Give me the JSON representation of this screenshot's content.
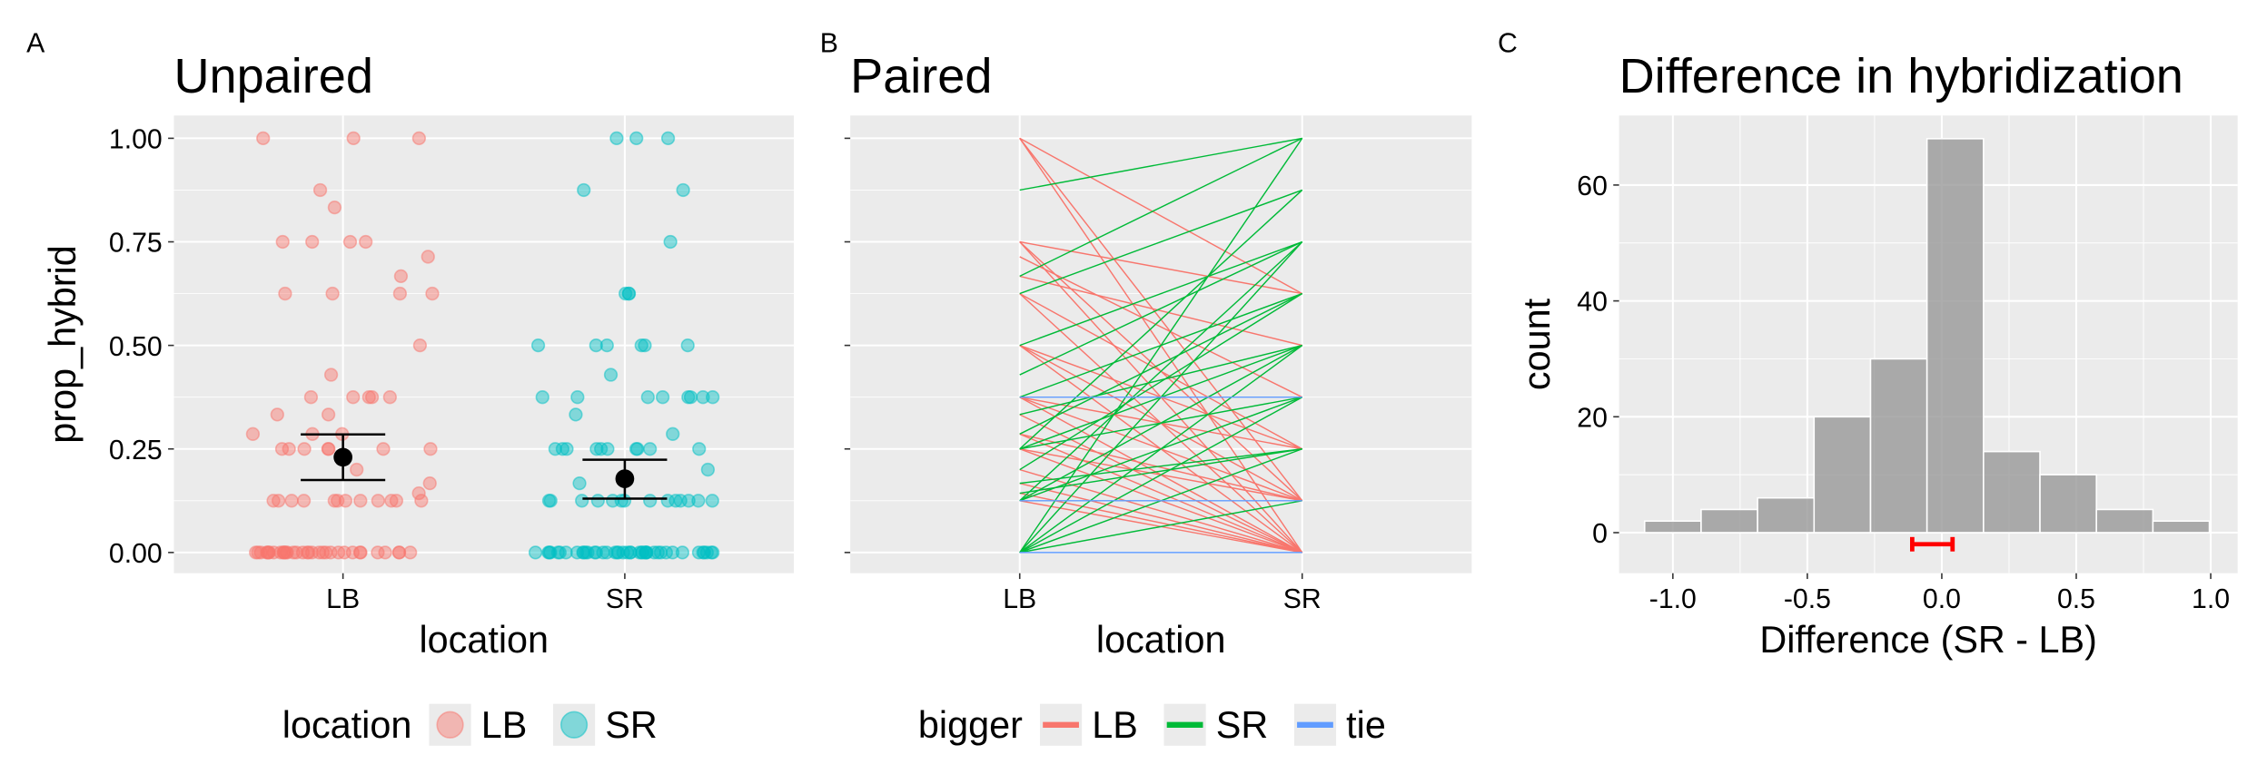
{
  "chart_data": [
    {
      "type": "strip",
      "panel_label": "A",
      "title": "Unpaired",
      "xlabel": "location",
      "ylabel": "prop_hybrid",
      "categories": [
        "LB",
        "SR"
      ],
      "series": [
        {
          "name": "LB",
          "color": "#F8766D",
          "values": [
            1,
            1,
            1,
            0.875,
            0.833,
            0.75,
            0.75,
            0.75,
            0.75,
            0.714,
            0.667,
            0.625,
            0.625,
            0.625,
            0.625,
            0.5,
            0.429,
            0.375,
            0.375,
            0.375,
            0.375,
            0.375,
            0.333,
            0.333,
            0.286,
            0.286,
            0.286,
            0.25,
            0.25,
            0.25,
            0.25,
            0.25,
            0.25,
            0.25,
            0.2,
            0.167,
            0.143,
            0.125,
            0.125,
            0.125,
            0.125,
            0.125,
            0.125,
            0.125,
            0.125,
            0.125,
            0.125,
            0.125,
            0.125,
            0,
            0,
            0,
            0,
            0,
            0,
            0,
            0,
            0,
            0,
            0,
            0,
            0,
            0,
            0,
            0,
            0,
            0,
            0,
            0,
            0,
            0,
            0,
            0,
            0,
            0,
            0,
            0,
            0,
            0,
            0,
            0,
            0,
            0
          ]
        },
        {
          "name": "SR",
          "color": "#00BFC4",
          "values": [
            1,
            1,
            1,
            0.875,
            0.875,
            0.75,
            0.625,
            0.625,
            0.625,
            0.5,
            0.5,
            0.5,
            0.5,
            0.5,
            0.5,
            0.429,
            0.375,
            0.375,
            0.375,
            0.375,
            0.375,
            0.375,
            0.375,
            0.375,
            0.333,
            0.286,
            0.25,
            0.25,
            0.25,
            0.25,
            0.25,
            0.25,
            0.25,
            0.25,
            0.25,
            0.25,
            0.2,
            0.167,
            0.125,
            0.125,
            0.125,
            0.125,
            0.125,
            0.125,
            0.125,
            0.125,
            0.125,
            0.125,
            0.125,
            0.125,
            0.125,
            0.125,
            0,
            0,
            0,
            0,
            0,
            0,
            0,
            0,
            0,
            0,
            0,
            0,
            0,
            0,
            0,
            0,
            0,
            0,
            0,
            0,
            0,
            0,
            0,
            0,
            0,
            0,
            0,
            0,
            0,
            0,
            0,
            0,
            0,
            0,
            0,
            0,
            0,
            0,
            0,
            0,
            0,
            0
          ]
        }
      ],
      "summary": [
        {
          "mean": 0.23,
          "low": 0.175,
          "high": 0.285
        },
        {
          "mean": 0.178,
          "low": 0.13,
          "high": 0.224
        }
      ],
      "ylim": [
        -0.05,
        1.055
      ],
      "yticks": [
        {
          "value": 0,
          "label": "0.00"
        },
        {
          "value": 0.25,
          "label": "0.25"
        },
        {
          "value": 0.5,
          "label": "0.50"
        },
        {
          "value": 0.75,
          "label": "0.75"
        },
        {
          "value": 1,
          "label": "1.00"
        }
      ],
      "grid": true,
      "legend_title": "location",
      "legend": "bottom"
    },
    {
      "type": "paired",
      "panel_label": "B",
      "title": "Paired",
      "xlabel": "location",
      "categories": [
        "LB",
        "SR"
      ],
      "series": [
        {
          "name": "LB",
          "color": "#F8766D",
          "from": [
            1,
            1,
            1,
            0.75,
            0.75,
            0.75,
            0.714,
            0.667,
            0.625,
            0.625,
            0.5,
            0.5,
            0.375,
            0.375,
            0.333,
            0.286,
            0.286,
            0.25,
            0.25,
            0.2,
            0.167,
            0.143,
            0.125,
            0.5,
            0.375
          ],
          "to": [
            0,
            0.125,
            0.625,
            0,
            0.125,
            0.625,
            0.375,
            0.5,
            0,
            0.25,
            0,
            0.25,
            0,
            0.125,
            0,
            0,
            0.125,
            0,
            0.125,
            0,
            0,
            0,
            0,
            0.125,
            0.25
          ]
        },
        {
          "name": "SR",
          "color": "#00BA38",
          "from": [
            0.875,
            0.667,
            0.625,
            0.5,
            0,
            0,
            0,
            0,
            0,
            0,
            0.125,
            0.125,
            0.125,
            0.143,
            0.25,
            0.25,
            0.25,
            0.2,
            0.286,
            0.375,
            0.333,
            0.429,
            0.167
          ],
          "to": [
            1,
            1,
            0.875,
            0.75,
            1,
            0.75,
            0.5,
            0.375,
            0.25,
            0.125,
            0.75,
            0.5,
            0.375,
            0.25,
            0.5,
            0.375,
            0.875,
            0.625,
            0.625,
            0.625,
            0.5,
            0.75,
            0.25
          ]
        },
        {
          "name": "tie",
          "color": "#619CFF",
          "from": [
            0.375,
            0.125,
            0
          ],
          "to": [
            0.375,
            0.125,
            0
          ]
        }
      ],
      "ylim": [
        -0.05,
        1.055
      ],
      "yticks": [
        0,
        0.25,
        0.5,
        0.75,
        1
      ],
      "grid": true,
      "legend_title": "bigger",
      "legend": "bottom"
    },
    {
      "type": "histogram",
      "panel_label": "C",
      "title": "Difference in hybridization",
      "xlabel": "Difference (SR - LB)",
      "ylabel": "count",
      "bins": [
        -1.105,
        -0.895,
        -0.685,
        -0.475,
        -0.265,
        -0.055,
        0.155,
        0.365,
        0.575,
        0.785,
        0.995
      ],
      "counts": [
        2,
        4,
        6,
        20,
        30,
        68,
        14,
        10,
        4,
        2
      ],
      "color": "#999999",
      "xlim": [
        -1.2,
        1.1
      ],
      "xticks": [
        {
          "value": -1,
          "label": "-1.0"
        },
        {
          "value": -0.5,
          "label": "-0.5"
        },
        {
          "value": 0,
          "label": "0.0"
        },
        {
          "value": 0.5,
          "label": "0.5"
        },
        {
          "value": 1,
          "label": "1.0"
        }
      ],
      "ylim": [
        -7,
        72
      ],
      "yticks": [
        0,
        20,
        40,
        60
      ],
      "interval": {
        "low": -0.11,
        "high": 0.04,
        "y": -2,
        "color": "#FF0000"
      },
      "grid": true
    }
  ]
}
